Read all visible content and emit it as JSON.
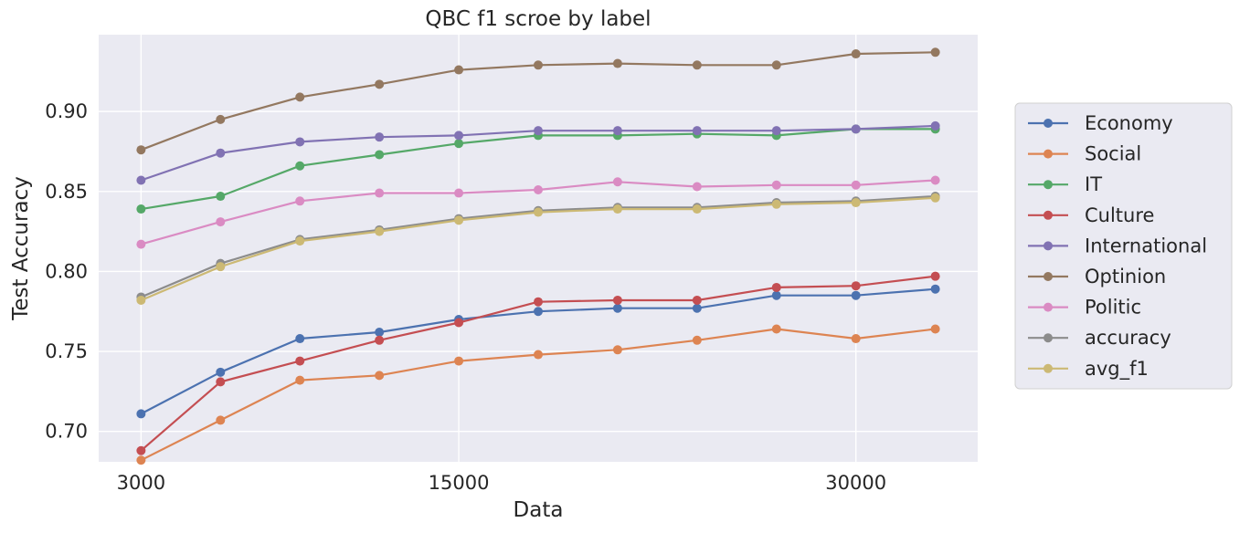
{
  "chart_data": {
    "type": "line",
    "title": "QBC f1 scroe by label",
    "xlabel": "Data",
    "ylabel": "Test Accuracy",
    "x": [
      3000,
      6000,
      9000,
      12000,
      15000,
      18000,
      21000,
      24000,
      27000,
      30000,
      33000
    ],
    "xticks": [
      3000,
      15000,
      30000
    ],
    "xtick_labels": [
      "3000",
      "15000",
      "30000"
    ],
    "xlim": [
      1400,
      34600
    ],
    "yticks": [
      0.7,
      0.75,
      0.8,
      0.85,
      0.9
    ],
    "ytick_labels": [
      "0.70",
      "0.75",
      "0.80",
      "0.85",
      "0.90"
    ],
    "ylim": [
      0.681,
      0.948
    ],
    "grid": true,
    "legend_position": "right-outside",
    "series": [
      {
        "name": "Economy",
        "color": "#4c72b0",
        "values": [
          0.711,
          0.737,
          0.758,
          0.762,
          0.77,
          0.775,
          0.777,
          0.777,
          0.785,
          0.785,
          0.789
        ]
      },
      {
        "name": "Social",
        "color": "#dd8452",
        "values": [
          0.682,
          0.707,
          0.732,
          0.735,
          0.744,
          0.748,
          0.751,
          0.757,
          0.764,
          0.758,
          0.764
        ]
      },
      {
        "name": "IT",
        "color": "#55a868",
        "values": [
          0.839,
          0.847,
          0.866,
          0.873,
          0.88,
          0.885,
          0.885,
          0.886,
          0.885,
          0.889,
          0.889
        ]
      },
      {
        "name": "Culture",
        "color": "#c44e52",
        "values": [
          0.688,
          0.731,
          0.744,
          0.757,
          0.768,
          0.781,
          0.782,
          0.782,
          0.79,
          0.791,
          0.797
        ]
      },
      {
        "name": "International",
        "color": "#8172b3",
        "values": [
          0.857,
          0.874,
          0.881,
          0.884,
          0.885,
          0.888,
          0.888,
          0.888,
          0.888,
          0.889,
          0.891
        ]
      },
      {
        "name": "Optinion",
        "color": "#937860",
        "values": [
          0.876,
          0.895,
          0.909,
          0.917,
          0.926,
          0.929,
          0.93,
          0.929,
          0.929,
          0.936,
          0.937
        ]
      },
      {
        "name": "Politic",
        "color": "#da8bc3",
        "values": [
          0.817,
          0.831,
          0.844,
          0.849,
          0.849,
          0.851,
          0.856,
          0.853,
          0.854,
          0.854,
          0.857
        ]
      },
      {
        "name": "accuracy",
        "color": "#8c8c8c",
        "values": [
          0.784,
          0.805,
          0.82,
          0.826,
          0.833,
          0.838,
          0.84,
          0.84,
          0.843,
          0.844,
          0.847
        ]
      },
      {
        "name": "avg_f1",
        "color": "#ccb974",
        "values": [
          0.782,
          0.803,
          0.819,
          0.825,
          0.832,
          0.837,
          0.839,
          0.839,
          0.842,
          0.843,
          0.846
        ]
      }
    ]
  }
}
